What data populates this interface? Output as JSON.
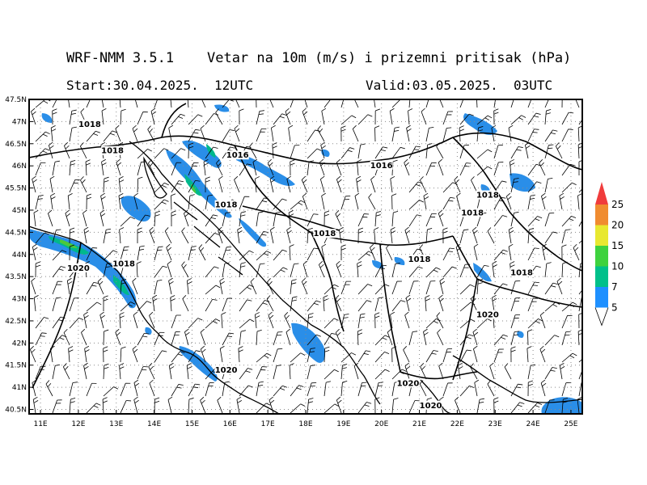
{
  "header": {
    "title": "WRF-NMM 3.5.1    Vetar na 10m (m/s) i prizemni pritisak (hPa)",
    "start": "Start:30.04.2025.  12UTC",
    "valid": "Valid:03.05.2025.  03UTC"
  },
  "map": {
    "lon_range": [
      10.7,
      25.3
    ],
    "lat_range": [
      40.4,
      47.5
    ],
    "lat_ticks": [
      "47.5N",
      "47N",
      "46.5N",
      "46N",
      "45.5N",
      "45N",
      "44.5N",
      "44N",
      "43.5N",
      "43N",
      "42.5N",
      "42N",
      "41.5N",
      "41N",
      "40.5N"
    ],
    "lat_values": [
      47.5,
      47,
      46.5,
      46,
      45.5,
      45,
      44.5,
      44,
      43.5,
      43,
      42.5,
      42,
      41.5,
      41,
      40.5
    ],
    "lon_ticks": [
      "11E",
      "12E",
      "13E",
      "14E",
      "15E",
      "16E",
      "17E",
      "18E",
      "19E",
      "20E",
      "21E",
      "22E",
      "23E",
      "24E",
      "25E"
    ],
    "lon_values": [
      11,
      12,
      13,
      14,
      15,
      16,
      17,
      18,
      19,
      20,
      21,
      22,
      23,
      24,
      25
    ],
    "isobar_labels": [
      {
        "text": "1018",
        "lon": 12.3,
        "lat": 46.9
      },
      {
        "text": "1018",
        "lon": 12.9,
        "lat": 46.3
      },
      {
        "text": "1016",
        "lon": 16.2,
        "lat": 46.2
      },
      {
        "text": "1016",
        "lon": 20.0,
        "lat": 45.97
      },
      {
        "text": "1018",
        "lon": 15.9,
        "lat": 45.08
      },
      {
        "text": "1018",
        "lon": 13.2,
        "lat": 43.75
      },
      {
        "text": "1020",
        "lon": 12.0,
        "lat": 43.65
      },
      {
        "text": "1018",
        "lon": 18.5,
        "lat": 44.43
      },
      {
        "text": "1018",
        "lon": 21.0,
        "lat": 43.85
      },
      {
        "text": "1018",
        "lon": 22.8,
        "lat": 45.3
      },
      {
        "text": "1018",
        "lon": 22.4,
        "lat": 44.9
      },
      {
        "text": "1018",
        "lon": 23.7,
        "lat": 43.55
      },
      {
        "text": "1020",
        "lon": 22.8,
        "lat": 42.6
      },
      {
        "text": "1020",
        "lon": 15.9,
        "lat": 41.35
      },
      {
        "text": "1020",
        "lon": 20.7,
        "lat": 41.05
      },
      {
        "text": "1020",
        "lon": 21.3,
        "lat": 40.55
      }
    ]
  },
  "colorbar": {
    "labels": [
      "5",
      "7",
      "10",
      "15",
      "20",
      "25"
    ],
    "colors": [
      "#1e90ff",
      "#00c08a",
      "#3ed23e",
      "#e8e830",
      "#f08c30",
      "#f03c3c"
    ]
  },
  "colors": {
    "wind_shade": "#2a8ee8",
    "wind_shade_strong": "#00b88c",
    "wind_shade_max": "#4cc83c"
  }
}
